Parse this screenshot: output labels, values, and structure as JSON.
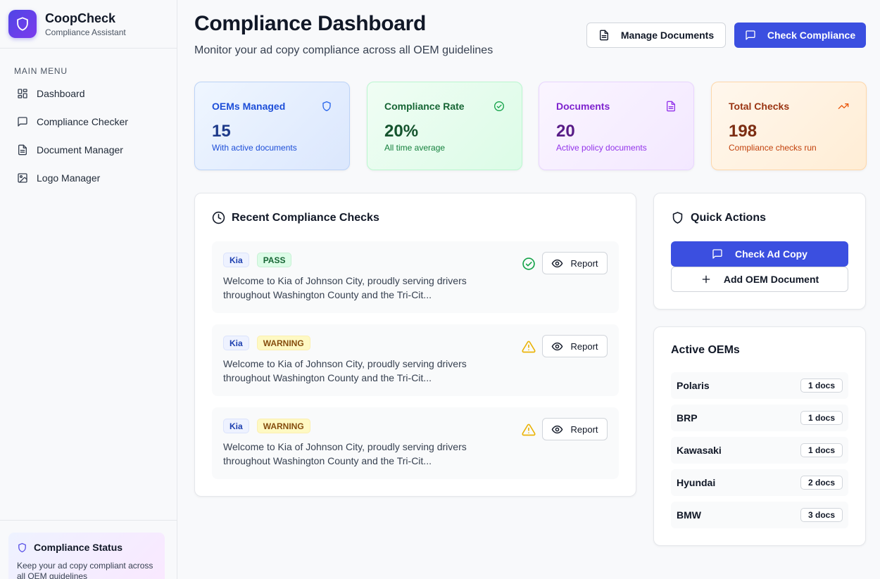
{
  "app": {
    "name": "CoopCheck",
    "subtitle": "Compliance Assistant"
  },
  "sidebar": {
    "section_label": "MAIN MENU",
    "items": [
      {
        "label": "Dashboard",
        "icon": "dashboard-grid-icon"
      },
      {
        "label": "Compliance Checker",
        "icon": "message-square-icon"
      },
      {
        "label": "Document Manager",
        "icon": "file-text-icon"
      },
      {
        "label": "Logo Manager",
        "icon": "image-icon"
      }
    ],
    "status": {
      "title": "Compliance Status",
      "description": "Keep your ad copy compliant across all OEM guidelines"
    }
  },
  "header": {
    "title": "Compliance Dashboard",
    "subtitle": "Monitor your ad copy compliance across all OEM guidelines",
    "manage_label": "Manage Documents",
    "check_label": "Check Compliance"
  },
  "stats": [
    {
      "title": "OEMs Managed",
      "value": "15",
      "desc": "With active documents",
      "icon": "shield-icon"
    },
    {
      "title": "Compliance Rate",
      "value": "20%",
      "desc": "All time average",
      "icon": "check-circle-icon"
    },
    {
      "title": "Documents",
      "value": "20",
      "desc": "Active policy documents",
      "icon": "file-text-icon"
    },
    {
      "title": "Total Checks",
      "value": "198",
      "desc": "Compliance checks run",
      "icon": "trending-up-icon"
    }
  ],
  "recent": {
    "title": "Recent Compliance Checks",
    "report_label": "Report",
    "checks": [
      {
        "oem": "Kia",
        "status": "PASS",
        "text": "Welcome to Kia of Johnson City, proudly serving drivers throughout Washington County and the Tri-Cit..."
      },
      {
        "oem": "Kia",
        "status": "WARNING",
        "text": "Welcome to Kia of Johnson City, proudly serving drivers throughout Washington County and the Tri-Cit..."
      },
      {
        "oem": "Kia",
        "status": "WARNING",
        "text": "Welcome to Kia of Johnson City, proudly serving drivers throughout Washington County and the Tri-Cit..."
      }
    ]
  },
  "quick_actions": {
    "title": "Quick Actions",
    "check_label": "Check Ad Copy",
    "add_label": "Add OEM Document"
  },
  "active_oems": {
    "title": "Active OEMs",
    "items": [
      {
        "name": "Polaris",
        "docs": "1 docs"
      },
      {
        "name": "BRP",
        "docs": "1 docs"
      },
      {
        "name": "Kawasaki",
        "docs": "1 docs"
      },
      {
        "name": "Hyundai",
        "docs": "2 docs"
      },
      {
        "name": "BMW",
        "docs": "3 docs"
      }
    ]
  },
  "colors": {
    "primary": "#3b4fe0",
    "pass": "#16a34a",
    "warning": "#eab308"
  }
}
